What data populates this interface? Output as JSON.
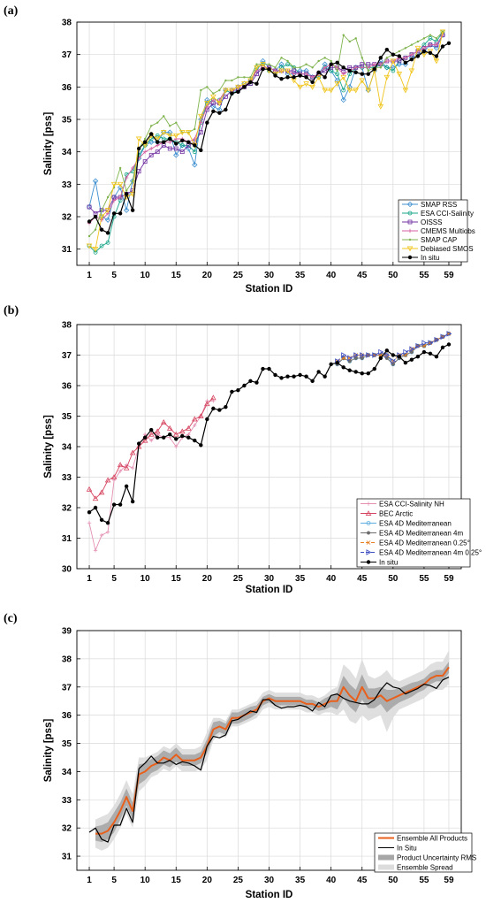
{
  "chart_data": [
    {
      "panel": "(a)",
      "type": "line",
      "xlabel": "Station ID",
      "ylabel": "Salinity [pss]",
      "xticks": [
        1,
        5,
        10,
        15,
        20,
        25,
        30,
        35,
        40,
        45,
        50,
        55,
        59
      ],
      "xlim": [
        -1,
        61
      ],
      "ylim": [
        30.5,
        38
      ],
      "yticks": [
        31,
        32,
        33,
        34,
        35,
        36,
        37,
        38
      ],
      "grid": true,
      "legend_position": "lower-right",
      "series": [
        {
          "name": "SMAP RSS",
          "color": "#3d8fd1",
          "marker": "diamond",
          "dash": "",
          "values": [
            32.3,
            33.1,
            32.0,
            31.9,
            32.6,
            32.9,
            32.2,
            33.1,
            33.8,
            34.2,
            34.3,
            34.3,
            34.6,
            34.6,
            33.9,
            34.2,
            34.1,
            33.6,
            35.0,
            35.6,
            35.4,
            35.3,
            35.9,
            35.9,
            36.0,
            36.1,
            36.2,
            36.5,
            36.8,
            36.6,
            36.5,
            36.7,
            36.4,
            36.4,
            36.5,
            36.5,
            36.3,
            36.4,
            36.7,
            36.5,
            36.2,
            35.6,
            36.0,
            36.6,
            36.6,
            35.9,
            36.5,
            36.8,
            36.6,
            36.6,
            36.7,
            36.7,
            36.9,
            37.0,
            37.1,
            37.3,
            37.2,
            37.6
          ]
        },
        {
          "name": "ESA CCI-Salinity",
          "color": "#17a589",
          "marker": "circle",
          "dash": "",
          "values": [
            31.1,
            30.9,
            31.1,
            31.2,
            32.0,
            32.5,
            33.3,
            33.4,
            33.9,
            34.2,
            34.4,
            34.5,
            34.4,
            34.4,
            34.3,
            34.2,
            34.2,
            34.0,
            34.9,
            35.5,
            35.6,
            35.6,
            35.9,
            35.8,
            35.9,
            36.0,
            36.1,
            36.6,
            36.7,
            36.5,
            36.4,
            36.6,
            36.7,
            36.6,
            36.4,
            36.4,
            36.3,
            36.3,
            36.6,
            36.5,
            36.4,
            35.9,
            36.4,
            36.6,
            36.6,
            36.6,
            36.6,
            36.7,
            36.6,
            36.5,
            36.8,
            36.9,
            37.0,
            37.1,
            37.3,
            37.5,
            37.4,
            37.7
          ]
        },
        {
          "name": "OISSS",
          "color": "#7030a0",
          "marker": "square",
          "dash": "",
          "values": [
            32.3,
            32.1,
            32.2,
            32.2,
            32.6,
            32.6,
            32.7,
            32.8,
            33.4,
            33.7,
            33.9,
            34.0,
            34.2,
            34.1,
            34.1,
            34.0,
            34.2,
            34.3,
            34.6,
            35.3,
            35.5,
            35.5,
            35.7,
            35.9,
            35.9,
            36.0,
            36.1,
            36.4,
            36.6,
            36.6,
            36.5,
            36.5,
            36.5,
            36.5,
            36.4,
            36.4,
            36.3,
            36.4,
            36.5,
            36.6,
            36.6,
            36.5,
            36.6,
            36.6,
            36.7,
            36.7,
            36.7,
            36.7,
            36.8,
            36.8,
            36.8,
            36.9,
            37.0,
            37.1,
            37.2,
            37.3,
            37.3,
            37.6
          ]
        },
        {
          "name": "CMEMS Multiobs",
          "color": "#d45fa0",
          "marker": "plus",
          "dash": "",
          "values": [
            31.8,
            32.0,
            31.9,
            32.1,
            32.5,
            32.6,
            33.2,
            33.5,
            33.8,
            34.0,
            34.1,
            34.2,
            34.3,
            34.3,
            34.4,
            34.4,
            34.3,
            34.4,
            34.9,
            35.4,
            35.6,
            35.6,
            35.9,
            35.9,
            36.0,
            36.0,
            36.2,
            36.5,
            36.6,
            36.6,
            36.5,
            36.5,
            36.5,
            36.4,
            36.4,
            36.4,
            36.3,
            36.4,
            36.6,
            36.7,
            36.6,
            36.4,
            36.5,
            36.6,
            36.6,
            36.6,
            36.7,
            36.7,
            36.8,
            36.8,
            36.9,
            36.9,
            37.0,
            37.1,
            37.2,
            37.3,
            37.3,
            37.6
          ]
        },
        {
          "name": "SMAP CAP",
          "color": "#7fb34d",
          "marker": "dot",
          "dash": "",
          "values": [
            31.4,
            31.6,
            32.2,
            32.6,
            32.9,
            33.5,
            32.8,
            33.1,
            34.1,
            34.4,
            34.8,
            34.9,
            35.1,
            34.8,
            34.9,
            34.6,
            34.6,
            34.7,
            35.9,
            36.0,
            35.8,
            35.9,
            36.2,
            36.2,
            36.3,
            36.3,
            36.3,
            36.7,
            36.7,
            36.7,
            36.6,
            36.9,
            36.8,
            36.6,
            36.6,
            36.7,
            36.6,
            36.8,
            36.9,
            36.8,
            36.5,
            37.6,
            37.4,
            37.5,
            36.9,
            36.5,
            36.6,
            36.6,
            36.9,
            37.0,
            37.1,
            37.2,
            37.3,
            37.4,
            37.5,
            37.6,
            37.5,
            37.7
          ]
        },
        {
          "name": "Debiased SMOS",
          "color": "#f0c419",
          "marker": "triangle-down",
          "dash": "",
          "values": [
            31.1,
            31.0,
            32.0,
            32.2,
            33.0,
            33.0,
            32.6,
            32.7,
            34.4,
            34.2,
            34.5,
            34.4,
            34.6,
            34.5,
            34.5,
            34.6,
            34.6,
            34.2,
            35.1,
            35.5,
            35.7,
            35.5,
            35.9,
            35.9,
            36.0,
            36.1,
            36.2,
            36.6,
            36.7,
            36.5,
            36.4,
            36.5,
            36.5,
            36.2,
            36.0,
            36.1,
            36.0,
            36.3,
            35.9,
            35.9,
            36.1,
            36.3,
            35.9,
            35.9,
            36.2,
            35.9,
            36.5,
            35.4,
            36.3,
            36.8,
            36.4,
            35.9,
            36.5,
            37.2,
            37.0,
            37.1,
            36.8,
            37.7
          ]
        },
        {
          "name": "In situ",
          "color": "#000000",
          "marker": "dot-big",
          "dash": "",
          "values": [
            31.85,
            32.0,
            31.6,
            31.5,
            32.1,
            32.1,
            32.7,
            32.2,
            34.1,
            34.3,
            34.55,
            34.3,
            34.3,
            34.4,
            34.25,
            34.35,
            34.3,
            34.2,
            34.05,
            34.9,
            35.25,
            35.2,
            35.3,
            35.8,
            35.85,
            36.0,
            36.15,
            36.1,
            36.55,
            36.55,
            36.35,
            36.25,
            36.3,
            36.3,
            36.35,
            36.3,
            36.15,
            36.45,
            36.3,
            36.7,
            36.75,
            36.6,
            36.5,
            36.45,
            36.4,
            36.4,
            36.55,
            36.9,
            37.15,
            37.0,
            36.95,
            36.75,
            36.85,
            36.95,
            37.1,
            37.05,
            36.95,
            37.25,
            37.35
          ]
        }
      ]
    },
    {
      "panel": "(b)",
      "type": "line",
      "xlabel": "Station ID",
      "ylabel": "Salinity [pss]",
      "xticks": [
        1,
        5,
        10,
        15,
        20,
        25,
        30,
        35,
        40,
        45,
        50,
        55,
        59
      ],
      "xlim": [
        -1,
        61
      ],
      "ylim": [
        30,
        38
      ],
      "yticks": [
        30,
        31,
        32,
        33,
        34,
        35,
        36,
        37,
        38
      ],
      "grid": true,
      "legend_position": "lower-right",
      "series": [
        {
          "name": "ESA CCI-Salinity NH",
          "color": "#e48fb2",
          "marker": "plus",
          "dash": "",
          "start": 1,
          "values": [
            31.5,
            30.6,
            31.1,
            31.2,
            32.9,
            33.2,
            33.4,
            33.3,
            34.0,
            34.4,
            34.2,
            34.4,
            34.3,
            34.3,
            34.0,
            34.3,
            34.4,
            34.7,
            35.0,
            35.5,
            35.5
          ]
        },
        {
          "name": "BEC Arctic",
          "color": "#d64560",
          "marker": "triangle",
          "dash": "",
          "start": 1,
          "values": [
            32.6,
            32.3,
            32.5,
            32.9,
            33.0,
            33.4,
            33.3,
            33.8,
            34.0,
            34.2,
            34.4,
            34.5,
            34.8,
            34.6,
            34.4,
            34.5,
            34.6,
            34.9,
            35.0,
            35.4,
            35.6
          ]
        },
        {
          "name": "ESA 4D Mediterranean",
          "color": "#5dade2",
          "marker": "circle",
          "dash": "",
          "start": 41,
          "values": [
            36.7,
            36.9,
            36.8,
            36.9,
            36.9,
            37.0,
            37.0,
            37.0,
            37.0,
            36.7,
            36.9,
            37.0,
            37.1,
            37.3,
            37.3,
            37.4,
            37.5,
            37.6,
            37.7
          ]
        },
        {
          "name": "ESA 4D Mediterranean 4m",
          "color": "#6c6c6c",
          "marker": "circle-filled",
          "dash": "",
          "start": 41,
          "values": [
            36.7,
            36.9,
            36.8,
            36.9,
            36.9,
            37.0,
            37.0,
            37.0,
            36.9,
            36.7,
            36.9,
            37.0,
            37.1,
            37.3,
            37.3,
            37.4,
            37.5,
            37.6,
            37.7
          ]
        },
        {
          "name": "ESA 4D Mediterranean 0.25°",
          "color": "#e67e22",
          "marker": "x",
          "dash": "4,2",
          "start": 41,
          "values": [
            36.8,
            36.9,
            36.9,
            37.0,
            37.0,
            37.0,
            37.0,
            37.0,
            37.0,
            36.8,
            37.0,
            37.0,
            37.2,
            37.3,
            37.3,
            37.4,
            37.5,
            37.6,
            37.7
          ]
        },
        {
          "name": "ESA 4D Mediterranean 4m 0.25°",
          "color": "#3b4cc0",
          "marker": "triangle-right",
          "dash": "4,2",
          "start": 41,
          "values": [
            36.8,
            37.0,
            36.9,
            37.0,
            37.0,
            37.0,
            37.0,
            37.1,
            37.0,
            36.8,
            37.0,
            37.1,
            37.2,
            37.3,
            37.4,
            37.4,
            37.5,
            37.6,
            37.7
          ]
        },
        {
          "name": "In situ",
          "color": "#000000",
          "marker": "dot-big",
          "dash": "",
          "start": 1,
          "values": [
            31.85,
            32.0,
            31.6,
            31.5,
            32.1,
            32.1,
            32.7,
            32.2,
            34.1,
            34.3,
            34.55,
            34.3,
            34.3,
            34.4,
            34.25,
            34.35,
            34.3,
            34.2,
            34.05,
            34.9,
            35.25,
            35.2,
            35.3,
            35.8,
            35.85,
            36.0,
            36.15,
            36.1,
            36.55,
            36.55,
            36.35,
            36.25,
            36.3,
            36.3,
            36.35,
            36.3,
            36.15,
            36.45,
            36.3,
            36.7,
            36.75,
            36.6,
            36.5,
            36.45,
            36.4,
            36.4,
            36.55,
            36.9,
            37.15,
            37.0,
            36.95,
            36.75,
            36.85,
            36.95,
            37.1,
            37.05,
            36.95,
            37.25,
            37.35
          ]
        }
      ]
    },
    {
      "panel": "(c)",
      "type": "area",
      "xlabel": "Station ID",
      "ylabel": "Salinity [pss]",
      "xticks": [
        1,
        5,
        10,
        15,
        20,
        25,
        30,
        35,
        40,
        45,
        50,
        55,
        59
      ],
      "xlim": [
        -1,
        61
      ],
      "ylim": [
        30.5,
        39
      ],
      "yticks": [
        31,
        32,
        33,
        34,
        35,
        36,
        37,
        38,
        39
      ],
      "grid": true,
      "legend_position": "lower-right",
      "ensemble": [
        31.8,
        31.8,
        31.9,
        32.2,
        32.6,
        33.1,
        32.6,
        33.9,
        34.0,
        34.2,
        34.3,
        34.5,
        34.4,
        34.6,
        34.4,
        34.4,
        34.4,
        34.5,
        34.9,
        35.5,
        35.6,
        35.5,
        35.9,
        35.9,
        36.0,
        36.1,
        36.2,
        36.5,
        36.6,
        36.5,
        36.5,
        36.5,
        36.5,
        36.5,
        36.4,
        36.4,
        36.3,
        36.4,
        36.5,
        36.5,
        37.0,
        36.7,
        36.5,
        37.0,
        36.6,
        36.6,
        36.7,
        36.5,
        36.6,
        36.7,
        36.8,
        36.9,
        37.0,
        37.1,
        37.3,
        37.4,
        37.4,
        37.7
      ],
      "ensemble_x_start": 2,
      "series": [
        {
          "name": "Ensemble All Products",
          "color": "#e8601c",
          "kind": "line-thick"
        },
        {
          "name": "In Situ",
          "color": "#000000",
          "kind": "line",
          "values": [
            31.85,
            32.0,
            31.6,
            31.5,
            32.1,
            32.1,
            32.7,
            32.2,
            34.1,
            34.3,
            34.55,
            34.3,
            34.3,
            34.4,
            34.25,
            34.35,
            34.3,
            34.2,
            34.05,
            34.9,
            35.25,
            35.2,
            35.3,
            35.8,
            35.85,
            36.0,
            36.15,
            36.1,
            36.55,
            36.55,
            36.35,
            36.25,
            36.3,
            36.3,
            36.35,
            36.3,
            36.15,
            36.45,
            36.3,
            36.7,
            36.75,
            36.6,
            36.5,
            36.45,
            36.4,
            36.4,
            36.55,
            36.9,
            37.15,
            37.0,
            36.95,
            36.75,
            36.85,
            36.95,
            37.1,
            37.05,
            36.95,
            37.25,
            37.35
          ]
        },
        {
          "name": "Product Uncertainty RMS",
          "color": "#a6a6a6",
          "kind": "band",
          "halfwidth": [
            0.25,
            0.3,
            0.3,
            0.35,
            0.3,
            0.3,
            0.3,
            0.35,
            0.3,
            0.25,
            0.25,
            0.25,
            0.25,
            0.25,
            0.2,
            0.2,
            0.2,
            0.2,
            0.25,
            0.25,
            0.2,
            0.2,
            0.2,
            0.2,
            0.2,
            0.2,
            0.15,
            0.15,
            0.15,
            0.15,
            0.15,
            0.15,
            0.15,
            0.15,
            0.15,
            0.15,
            0.15,
            0.2,
            0.2,
            0.3,
            0.4,
            0.4,
            0.4,
            0.45,
            0.35,
            0.35,
            0.3,
            0.4,
            0.3,
            0.25,
            0.25,
            0.25,
            0.2,
            0.2,
            0.2,
            0.2,
            0.2,
            0.2
          ]
        },
        {
          "name": "Ensemble Spread",
          "color": "#dcdcdc",
          "kind": "band",
          "halfwidth": [
            0.5,
            0.6,
            0.6,
            0.6,
            0.6,
            0.6,
            0.6,
            0.6,
            0.5,
            0.4,
            0.4,
            0.4,
            0.4,
            0.4,
            0.4,
            0.4,
            0.4,
            0.4,
            0.5,
            0.4,
            0.3,
            0.3,
            0.3,
            0.3,
            0.3,
            0.3,
            0.3,
            0.3,
            0.3,
            0.3,
            0.3,
            0.3,
            0.3,
            0.3,
            0.3,
            0.3,
            0.3,
            0.3,
            0.4,
            0.5,
            0.8,
            0.9,
            0.8,
            1.0,
            0.8,
            0.7,
            0.7,
            1.1,
            0.7,
            0.5,
            0.5,
            0.5,
            0.5,
            0.5,
            0.5,
            0.5,
            0.5,
            0.6
          ]
        }
      ]
    }
  ]
}
